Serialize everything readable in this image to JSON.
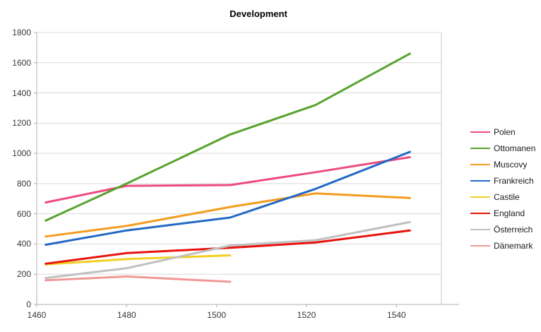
{
  "chart_data": {
    "type": "line",
    "title": "Development",
    "x": [
      1462,
      1480,
      1503,
      1522,
      1543
    ],
    "xlim": [
      1460,
      1550
    ],
    "ylim": [
      0,
      1800
    ],
    "x_ticks": [
      1460,
      1480,
      1500,
      1520,
      1540
    ],
    "y_ticks": [
      0,
      200,
      400,
      600,
      800,
      1000,
      1200,
      1400,
      1600,
      1800
    ],
    "grid": "horizontal",
    "legend_position": "right",
    "series": [
      {
        "name": "Polen",
        "color": "#ec4b7d",
        "values": [
          675,
          785,
          790,
          875,
          975
        ]
      },
      {
        "name": "Ottomanen",
        "color": "#58a32f",
        "values": [
          555,
          800,
          1125,
          1320,
          1660
        ]
      },
      {
        "name": "Muscovy",
        "color": "#f39c1f",
        "values": [
          450,
          520,
          645,
          735,
          705
        ]
      },
      {
        "name": "Frankreich",
        "color": "#2268c4",
        "values": [
          395,
          490,
          575,
          765,
          1010
        ]
      },
      {
        "name": "Castile",
        "color": "#f2cf25",
        "values": [
          265,
          300,
          325,
          null,
          null
        ]
      },
      {
        "name": "England",
        "color": "#e8120c",
        "values": [
          270,
          340,
          375,
          410,
          490
        ]
      },
      {
        "name": "Österreich",
        "color": "#c0c0c0",
        "values": [
          175,
          240,
          390,
          425,
          545
        ]
      },
      {
        "name": "Dänemark",
        "color": "#f19895",
        "values": [
          160,
          185,
          150,
          null,
          null
        ]
      }
    ],
    "colors": {
      "gridline": "#d9d9d9",
      "axis": "#b0b0b0",
      "plot_border": "#c9c9c9",
      "tick_text": "#383838"
    }
  }
}
